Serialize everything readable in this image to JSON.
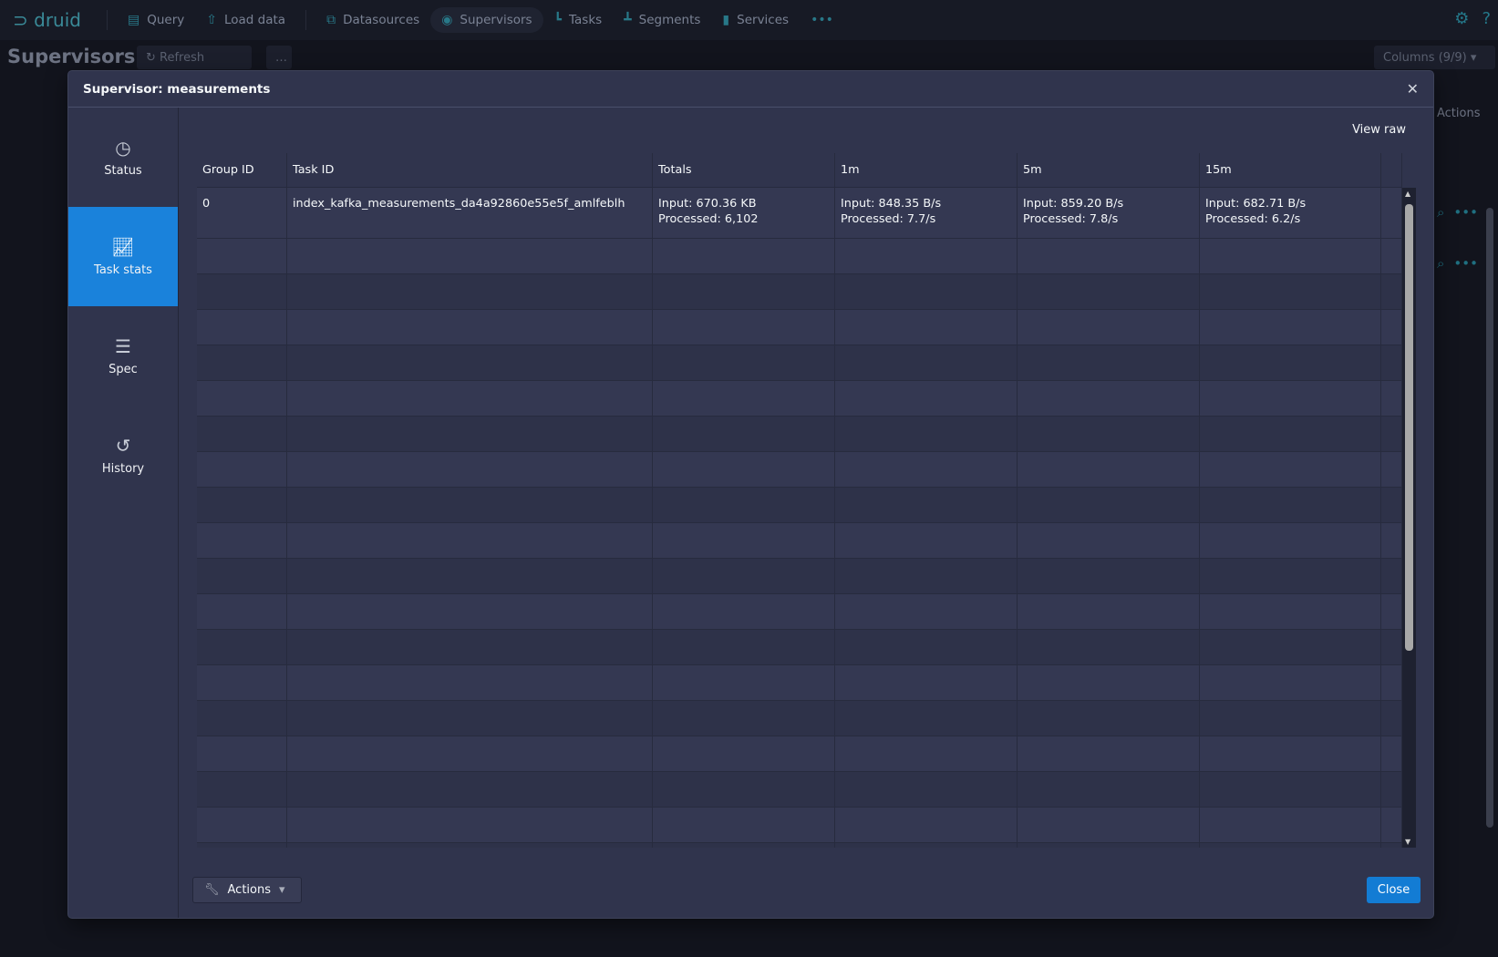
{
  "nav": {
    "logo": "druid",
    "items": [
      {
        "label": "Query",
        "icon": "query-icon"
      },
      {
        "label": "Load data",
        "icon": "upload-icon"
      },
      {
        "label": "Datasources",
        "icon": "datasources-icon"
      },
      {
        "label": "Supervisors",
        "icon": "eye-icon",
        "active": true
      },
      {
        "label": "Tasks",
        "icon": "tasks-icon"
      },
      {
        "label": "Segments",
        "icon": "segments-icon"
      },
      {
        "label": "Services",
        "icon": "database-icon"
      }
    ],
    "more": "•••"
  },
  "background": {
    "title": "Supervisors",
    "refresh": "Refresh",
    "columns": "Columns (9/9)",
    "actions_header": "Actions"
  },
  "modal": {
    "title": "Supervisor: measurements",
    "tabs": [
      {
        "label": "Status"
      },
      {
        "label": "Task stats",
        "active": true
      },
      {
        "label": "Spec"
      },
      {
        "label": "History"
      }
    ],
    "view_raw": "View raw",
    "table": {
      "headers": [
        "Group ID",
        "Task ID",
        "Totals",
        "1m",
        "5m",
        "15m"
      ],
      "rows": [
        {
          "group_id": "0",
          "task_id": "index_kafka_measurements_da4a92860e55e5f_amlfeblh",
          "totals": [
            "Input: 670.36 KB",
            "Processed: 6,102"
          ],
          "m1": [
            "Input: 848.35 B/s",
            "Processed: 7.7/s"
          ],
          "m5": [
            "Input: 859.20 B/s",
            "Processed: 7.8/s"
          ],
          "m15": [
            "Input: 682.71 B/s",
            "Processed: 6.2/s"
          ]
        }
      ]
    },
    "actions_label": "Actions",
    "close_label": "Close"
  },
  "colors": {
    "accent": "#1a82db",
    "brand": "#2f8c9e"
  }
}
